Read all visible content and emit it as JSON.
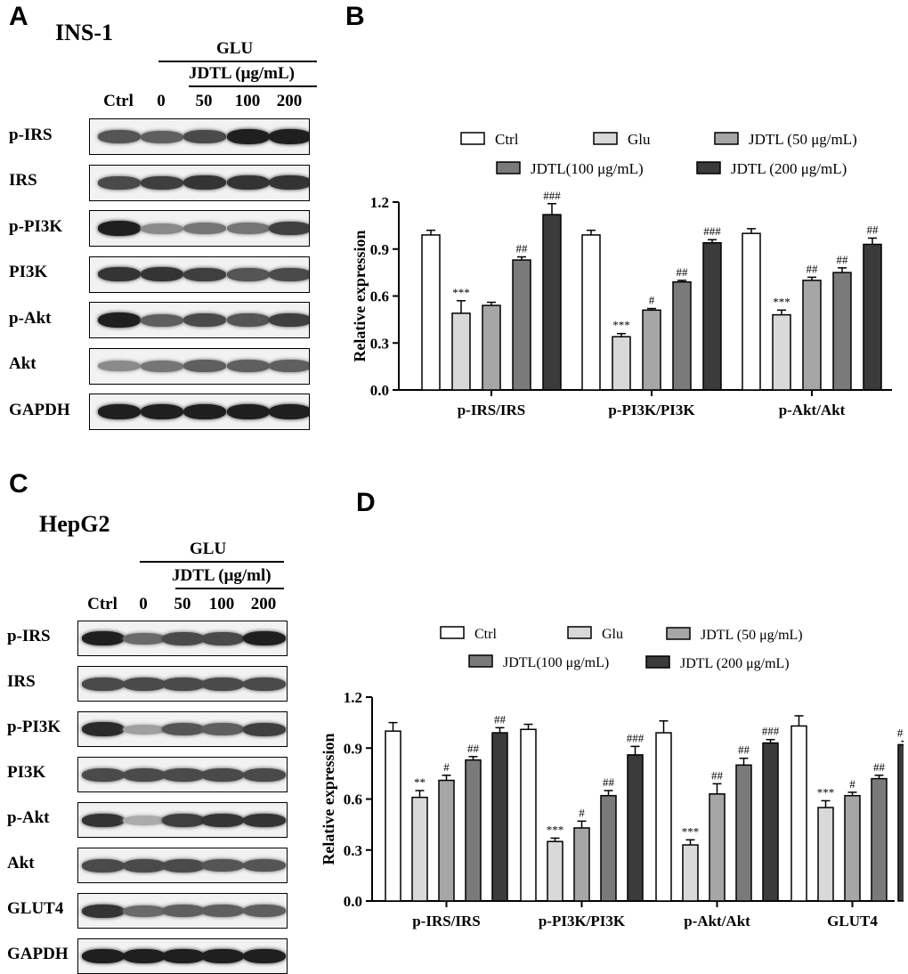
{
  "panels": {
    "A": {
      "letter": "A",
      "cell_line": "INS-1",
      "treatment": "GLU",
      "dose_label": "JDTL (μg/mL)",
      "lanes": [
        "Ctrl",
        "0",
        "50",
        "100",
        "200"
      ],
      "blots": [
        {
          "label": "p-IRS",
          "intensity": [
            0.7,
            0.65,
            0.75,
            0.95,
            0.95
          ]
        },
        {
          "label": "IRS",
          "intensity": [
            0.75,
            0.8,
            0.85,
            0.85,
            0.85
          ]
        },
        {
          "label": "p-PI3K",
          "intensity": [
            0.95,
            0.45,
            0.55,
            0.55,
            0.8
          ]
        },
        {
          "label": "PI3K",
          "intensity": [
            0.85,
            0.85,
            0.8,
            0.7,
            0.75
          ]
        },
        {
          "label": "p-Akt",
          "intensity": [
            0.95,
            0.65,
            0.75,
            0.7,
            0.8
          ]
        },
        {
          "label": "Akt",
          "intensity": [
            0.45,
            0.55,
            0.65,
            0.65,
            0.65
          ]
        },
        {
          "label": "GAPDH",
          "intensity": [
            0.95,
            0.95,
            0.95,
            0.95,
            0.95
          ]
        }
      ]
    },
    "B": {
      "letter": "B"
    },
    "C": {
      "letter": "C",
      "cell_line": "HepG2",
      "treatment": "GLU",
      "dose_label": "JDTL (μg/ml)",
      "lanes": [
        "Ctrl",
        "0",
        "50",
        "100",
        "200"
      ],
      "blots": [
        {
          "label": "p-IRS",
          "intensity": [
            0.95,
            0.6,
            0.75,
            0.75,
            0.95
          ]
        },
        {
          "label": "IRS",
          "intensity": [
            0.75,
            0.75,
            0.75,
            0.75,
            0.75
          ]
        },
        {
          "label": "p-PI3K",
          "intensity": [
            0.9,
            0.35,
            0.7,
            0.65,
            0.8
          ]
        },
        {
          "label": "PI3K",
          "intensity": [
            0.75,
            0.75,
            0.75,
            0.75,
            0.75
          ]
        },
        {
          "label": "p-Akt",
          "intensity": [
            0.85,
            0.3,
            0.8,
            0.85,
            0.85
          ]
        },
        {
          "label": "Akt",
          "intensity": [
            0.75,
            0.75,
            0.75,
            0.7,
            0.7
          ]
        },
        {
          "label": "GLUT4",
          "intensity": [
            0.85,
            0.6,
            0.65,
            0.65,
            0.65
          ]
        },
        {
          "label": "GAPDH",
          "intensity": [
            0.95,
            0.95,
            0.95,
            0.95,
            0.95
          ]
        }
      ]
    },
    "D": {
      "letter": "D"
    }
  },
  "chart_data": [
    {
      "panel": "B",
      "type": "bar",
      "ylabel": "Relative expression",
      "ylim": [
        0,
        1.2
      ],
      "yticks": [
        "0.0",
        "0.3",
        "0.6",
        "0.9",
        "1.2"
      ],
      "categories": [
        "p-IRS/IRS",
        "p-PI3K/PI3K",
        "p-Akt/Akt"
      ],
      "legend_position": "top",
      "series": [
        {
          "name": "Ctrl",
          "color": "#ffffff",
          "values": [
            0.99,
            0.99,
            1.0
          ],
          "errors": [
            0.03,
            0.03,
            0.03
          ],
          "marks": [
            "",
            "",
            ""
          ]
        },
        {
          "name": "Glu",
          "color": "#d9d9d9",
          "values": [
            0.49,
            0.34,
            0.48
          ],
          "errors": [
            0.08,
            0.02,
            0.03
          ],
          "marks": [
            "***",
            "***",
            "***"
          ]
        },
        {
          "name": "JDTL (50  μg/mL)",
          "color": "#a6a6a6",
          "values": [
            0.54,
            0.51,
            0.7
          ],
          "errors": [
            0.02,
            0.01,
            0.02
          ],
          "marks": [
            "",
            "#",
            "##"
          ]
        },
        {
          "name": "JDTL(100 μg/mL)",
          "color": "#7a7a7a",
          "values": [
            0.83,
            0.69,
            0.75
          ],
          "errors": [
            0.02,
            0.01,
            0.03
          ],
          "marks": [
            "##",
            "##",
            "##"
          ]
        },
        {
          "name": "JDTL (200 μg/mL)",
          "color": "#3b3b3b",
          "values": [
            1.12,
            0.94,
            0.93
          ],
          "errors": [
            0.07,
            0.02,
            0.04
          ],
          "marks": [
            "###",
            "###",
            "##"
          ]
        }
      ]
    },
    {
      "panel": "D",
      "type": "bar",
      "ylabel": "Relative expression",
      "ylim": [
        0,
        1.2
      ],
      "yticks": [
        "0.0",
        "0.3",
        "0.6",
        "0.9",
        "1.2"
      ],
      "categories": [
        "p-IRS/IRS",
        "p-PI3K/PI3K",
        "p-Akt/Akt",
        "GLUT4"
      ],
      "legend_position": "top",
      "series": [
        {
          "name": "Ctrl",
          "color": "#ffffff",
          "values": [
            1.0,
            1.01,
            0.99,
            1.03
          ],
          "errors": [
            0.05,
            0.03,
            0.07,
            0.06
          ],
          "marks": [
            "",
            "",
            "",
            ""
          ]
        },
        {
          "name": "Glu",
          "color": "#d9d9d9",
          "values": [
            0.61,
            0.35,
            0.33,
            0.55
          ],
          "errors": [
            0.04,
            0.02,
            0.03,
            0.04
          ],
          "marks": [
            "**",
            "***",
            "***",
            "***"
          ]
        },
        {
          "name": "JDTL (50  μg/mL)",
          "color": "#a6a6a6",
          "values": [
            0.71,
            0.43,
            0.63,
            0.62
          ],
          "errors": [
            0.03,
            0.04,
            0.06,
            0.02
          ],
          "marks": [
            "#",
            "#",
            "##",
            "#"
          ]
        },
        {
          "name": "JDTL(100 μg/mL)",
          "color": "#7a7a7a",
          "values": [
            0.83,
            0.62,
            0.8,
            0.72
          ],
          "errors": [
            0.02,
            0.03,
            0.04,
            0.02
          ],
          "marks": [
            "##",
            "##",
            "##",
            "##"
          ]
        },
        {
          "name": "JDTL (200 μg/mL)",
          "color": "#3b3b3b",
          "values": [
            0.99,
            0.86,
            0.93,
            0.92
          ],
          "errors": [
            0.03,
            0.05,
            0.02,
            0.02
          ],
          "marks": [
            "##",
            "###",
            "###",
            "###"
          ]
        }
      ]
    }
  ]
}
